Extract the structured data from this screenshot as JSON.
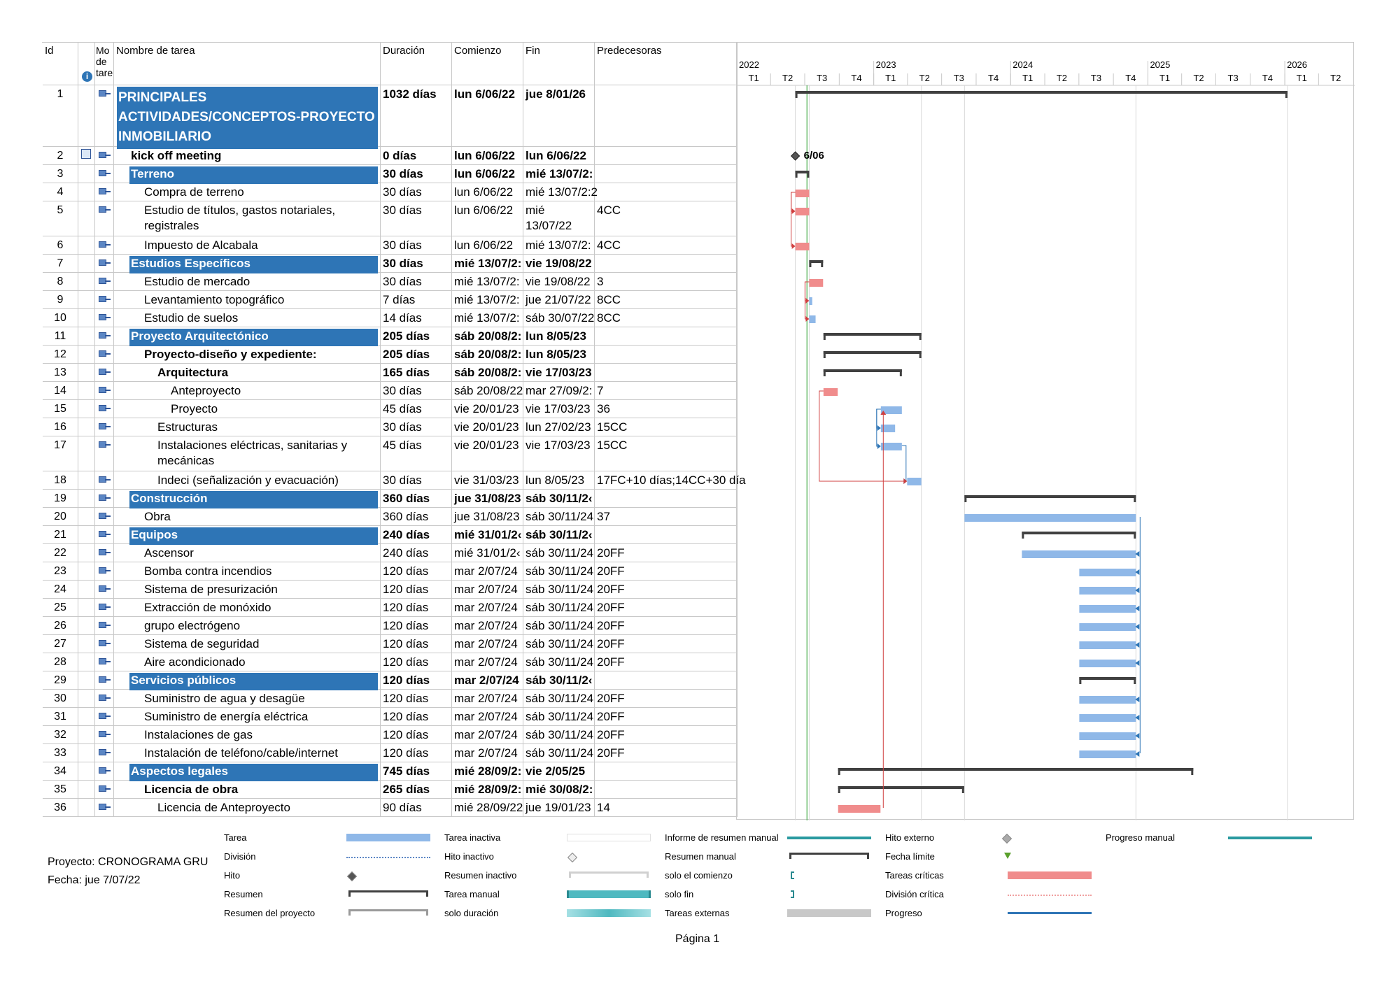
{
  "headers": {
    "id": "Id",
    "mode": "Mo de tare",
    "name": "Nombre de tarea",
    "duration": "Duración",
    "start": "Comienzo",
    "finish": "Fin",
    "pred": "Predecesoras"
  },
  "timeline": {
    "years": [
      "2022",
      "2023",
      "2024",
      "2025",
      "2026"
    ],
    "quarters": [
      "T1",
      "T2",
      "T3",
      "T4",
      "T1",
      "T2",
      "T3",
      "T4",
      "T1",
      "T2",
      "T3",
      "T4",
      "T1",
      "T2",
      "T3",
      "T4",
      "T1",
      "T2"
    ]
  },
  "milestone_label": "6/06",
  "chart_data": {
    "type": "gantt",
    "x_range": [
      "2022-01-01",
      "2026-06-30"
    ],
    "tasks": [
      {
        "id": "1",
        "name": "PRINCIPALES ACTIVIDADES/CONCEPTOS-PROYECTO INMOBILIARIO",
        "duration": "1032 días",
        "start": "lun 6/06/22",
        "finish": "jue 8/01/26",
        "pred": "",
        "level": 0,
        "kind": "project",
        "s": "2022-06-06",
        "f": "2026-01-08"
      },
      {
        "id": "2",
        "name": "kick off meeting",
        "duration": "0 días",
        "start": "lun 6/06/22",
        "finish": "lun 6/06/22",
        "pred": "",
        "level": 1,
        "kind": "milestone",
        "s": "2022-06-06",
        "f": "2022-06-06"
      },
      {
        "id": "3",
        "name": "Terreno",
        "duration": "30 días",
        "start": "lun 6/06/22",
        "finish": "mié 13/07/2:",
        "pred": "",
        "level": 1,
        "kind": "summary",
        "s": "2022-06-06",
        "f": "2022-07-13"
      },
      {
        "id": "4",
        "name": "Compra de terreno",
        "duration": "30 días",
        "start": "lun 6/06/22",
        "finish": "mié 13/07/2:2",
        "pred": "",
        "level": 2,
        "kind": "critical",
        "s": "2022-06-06",
        "f": "2022-07-13"
      },
      {
        "id": "5",
        "name": "Estudio de títulos, gastos notariales, registrales",
        "duration": "30 días",
        "start": "lun 6/06/22",
        "finish": "mié 13/07/22",
        "pred": "4CC",
        "level": 2,
        "kind": "critical",
        "s": "2022-06-06",
        "f": "2022-07-13"
      },
      {
        "id": "6",
        "name": "Impuesto de Alcabala",
        "duration": "30 días",
        "start": "lun 6/06/22",
        "finish": "mié 13/07/2:",
        "pred": "4CC",
        "level": 2,
        "kind": "critical",
        "s": "2022-06-06",
        "f": "2022-07-13"
      },
      {
        "id": "7",
        "name": "Estudios Específicos",
        "duration": "30 días",
        "start": "mié 13/07/2:",
        "finish": "vie 19/08/22",
        "pred": "",
        "level": 1,
        "kind": "summary",
        "s": "2022-07-13",
        "f": "2022-08-19"
      },
      {
        "id": "8",
        "name": "Estudio de mercado",
        "duration": "30 días",
        "start": "mié 13/07/2:",
        "finish": "vie 19/08/22",
        "pred": "3",
        "level": 2,
        "kind": "critical",
        "s": "2022-07-13",
        "f": "2022-08-19"
      },
      {
        "id": "9",
        "name": "Levantamiento topográfico",
        "duration": "7 días",
        "start": "mié 13/07/2:",
        "finish": "jue 21/07/22",
        "pred": "8CC",
        "level": 2,
        "kind": "task",
        "s": "2022-07-13",
        "f": "2022-07-21"
      },
      {
        "id": "10",
        "name": "Estudio de suelos",
        "duration": "14 días",
        "start": "mié 13/07/2:",
        "finish": "sáb 30/07/22",
        "pred": "8CC",
        "level": 2,
        "kind": "task",
        "s": "2022-07-13",
        "f": "2022-07-30"
      },
      {
        "id": "11",
        "name": "Proyecto Arquitectónico",
        "duration": "205 días",
        "start": "sáb 20/08/2:",
        "finish": "lun 8/05/23",
        "pred": "",
        "level": 1,
        "kind": "summary",
        "s": "2022-08-20",
        "f": "2023-05-08"
      },
      {
        "id": "12",
        "name": "Proyecto-diseño y expediente:",
        "duration": "205 días",
        "start": "sáb 20/08/2:",
        "finish": "lun 8/05/23",
        "pred": "",
        "level": 2,
        "kind": "summary",
        "s": "2022-08-20",
        "f": "2023-05-08"
      },
      {
        "id": "13",
        "name": "Arquitectura",
        "duration": "165 días",
        "start": "sáb 20/08/2:",
        "finish": "vie 17/03/23",
        "pred": "",
        "level": 3,
        "kind": "summary",
        "s": "2022-08-20",
        "f": "2023-03-17"
      },
      {
        "id": "14",
        "name": "Anteproyecto",
        "duration": "30 días",
        "start": "sáb 20/08/22",
        "finish": "mar 27/09/2:",
        "pred": "7",
        "level": 4,
        "kind": "critical",
        "s": "2022-08-20",
        "f": "2022-09-27"
      },
      {
        "id": "15",
        "name": "Proyecto",
        "duration": "45 días",
        "start": "vie 20/01/23",
        "finish": "vie 17/03/23",
        "pred": "36",
        "level": 4,
        "kind": "task",
        "s": "2023-01-20",
        "f": "2023-03-17"
      },
      {
        "id": "16",
        "name": "Estructuras",
        "duration": "30 días",
        "start": "vie 20/01/23",
        "finish": "lun 27/02/23",
        "pred": "15CC",
        "level": 3,
        "kind": "task",
        "s": "2023-01-20",
        "f": "2023-02-27"
      },
      {
        "id": "17",
        "name": "Instalaciones eléctricas, sanitarias y mecánicas",
        "duration": "45 días",
        "start": "vie 20/01/23",
        "finish": "vie 17/03/23",
        "pred": "15CC",
        "level": 3,
        "kind": "task",
        "s": "2023-01-20",
        "f": "2023-03-17"
      },
      {
        "id": "18",
        "name": "Indeci (señalización y evacuación)",
        "duration": "30 días",
        "start": "vie 31/03/23",
        "finish": "lun 8/05/23",
        "pred": "17FC+10 días;14CC+30 día",
        "level": 3,
        "kind": "task",
        "s": "2023-03-31",
        "f": "2023-05-08"
      },
      {
        "id": "19",
        "name": "Construcción",
        "duration": "360 días",
        "start": "jue 31/08/23",
        "finish": "sáb 30/11/2‹",
        "pred": "",
        "level": 1,
        "kind": "summary",
        "s": "2023-08-31",
        "f": "2024-11-30"
      },
      {
        "id": "20",
        "name": "Obra",
        "duration": "360 días",
        "start": "jue 31/08/23",
        "finish": "sáb 30/11/24",
        "pred": "37",
        "level": 2,
        "kind": "task",
        "s": "2023-08-31",
        "f": "2024-11-30"
      },
      {
        "id": "21",
        "name": "Equipos",
        "duration": "240 días",
        "start": "mié 31/01/2‹",
        "finish": "sáb 30/11/2‹",
        "pred": "",
        "level": 1,
        "kind": "summary",
        "s": "2024-01-31",
        "f": "2024-11-30"
      },
      {
        "id": "22",
        "name": "Ascensor",
        "duration": "240 días",
        "start": "mié 31/01/2‹",
        "finish": "sáb 30/11/24",
        "pred": "20FF",
        "level": 2,
        "kind": "task",
        "s": "2024-01-31",
        "f": "2024-11-30"
      },
      {
        "id": "23",
        "name": "Bomba contra incendios",
        "duration": "120 días",
        "start": "mar 2/07/24",
        "finish": "sáb 30/11/24",
        "pred": "20FF",
        "level": 2,
        "kind": "task",
        "s": "2024-07-02",
        "f": "2024-11-30"
      },
      {
        "id": "24",
        "name": "Sistema de presurización",
        "duration": "120 días",
        "start": "mar 2/07/24",
        "finish": "sáb 30/11/24",
        "pred": "20FF",
        "level": 2,
        "kind": "task",
        "s": "2024-07-02",
        "f": "2024-11-30"
      },
      {
        "id": "25",
        "name": "Extracción de monóxido",
        "duration": "120 días",
        "start": "mar 2/07/24",
        "finish": "sáb 30/11/24",
        "pred": "20FF",
        "level": 2,
        "kind": "task",
        "s": "2024-07-02",
        "f": "2024-11-30"
      },
      {
        "id": "26",
        "name": "grupo electrógeno",
        "duration": "120 días",
        "start": "mar 2/07/24",
        "finish": "sáb 30/11/24",
        "pred": "20FF",
        "level": 2,
        "kind": "task",
        "s": "2024-07-02",
        "f": "2024-11-30"
      },
      {
        "id": "27",
        "name": "Sistema de seguridad",
        "duration": "120 días",
        "start": "mar 2/07/24",
        "finish": "sáb 30/11/24",
        "pred": "20FF",
        "level": 2,
        "kind": "task",
        "s": "2024-07-02",
        "f": "2024-11-30"
      },
      {
        "id": "28",
        "name": "Aire acondicionado",
        "duration": "120 días",
        "start": "mar 2/07/24",
        "finish": "sáb 30/11/24",
        "pred": "20FF",
        "level": 2,
        "kind": "task",
        "s": "2024-07-02",
        "f": "2024-11-30"
      },
      {
        "id": "29",
        "name": "Servicios públicos",
        "duration": "120 días",
        "start": "mar 2/07/24",
        "finish": "sáb 30/11/2‹",
        "pred": "",
        "level": 1,
        "kind": "summary",
        "s": "2024-07-02",
        "f": "2024-11-30"
      },
      {
        "id": "30",
        "name": "Suministro de agua y desagüe",
        "duration": "120 días",
        "start": "mar 2/07/24",
        "finish": "sáb 30/11/24",
        "pred": "20FF",
        "level": 2,
        "kind": "task",
        "s": "2024-07-02",
        "f": "2024-11-30"
      },
      {
        "id": "31",
        "name": "Suministro de energía eléctrica",
        "duration": "120 días",
        "start": "mar 2/07/24",
        "finish": "sáb 30/11/24",
        "pred": "20FF",
        "level": 2,
        "kind": "task",
        "s": "2024-07-02",
        "f": "2024-11-30"
      },
      {
        "id": "32",
        "name": "Instalaciones de gas",
        "duration": "120 días",
        "start": "mar 2/07/24",
        "finish": "sáb 30/11/24",
        "pred": "20FF",
        "level": 2,
        "kind": "task",
        "s": "2024-07-02",
        "f": "2024-11-30"
      },
      {
        "id": "33",
        "name": "Instalación de teléfono/cable/internet",
        "duration": "120 días",
        "start": "mar 2/07/24",
        "finish": "sáb 30/11/24",
        "pred": "20FF",
        "level": 2,
        "kind": "task",
        "s": "2024-07-02",
        "f": "2024-11-30"
      },
      {
        "id": "34",
        "name": "Aspectos legales",
        "duration": "745 días",
        "start": "mié 28/09/2:",
        "finish": "vie 2/05/25",
        "pred": "",
        "level": 1,
        "kind": "summary",
        "s": "2022-09-28",
        "f": "2025-05-02"
      },
      {
        "id": "35",
        "name": "Licencia de obra",
        "duration": "265 días",
        "start": "mié 28/09/2:",
        "finish": "mié 30/08/2:",
        "pred": "",
        "level": 2,
        "kind": "summary",
        "s": "2022-09-28",
        "f": "2023-08-30"
      },
      {
        "id": "36",
        "name": "Licencia de Anteproyecto",
        "duration": "90 días",
        "start": "mié 28/09/22",
        "finish": "jue 19/01/23",
        "pred": "14",
        "level": 3,
        "kind": "critical",
        "s": "2022-09-28",
        "f": "2023-01-19"
      }
    ]
  },
  "legend": {
    "col1": [
      "Tarea",
      "División",
      "Hito",
      "Resumen",
      "Resumen del proyecto"
    ],
    "col2": [
      "Tarea inactiva",
      "Hito inactivo",
      "Resumen inactivo",
      "Tarea manual",
      "solo duración"
    ],
    "col3": [
      "Informe de resumen manual",
      "Resumen manual",
      "solo el comienzo",
      "solo fin",
      "Tareas externas"
    ],
    "col4": [
      "Hito externo",
      "Fecha límite",
      "Tareas críticas",
      "División crítica",
      "Progreso"
    ],
    "col5": [
      "Progreso manual"
    ]
  },
  "footer": {
    "project": "Proyecto: CRONOGRAMA GRU",
    "date": "Fecha: jue 7/07/22",
    "page": "Página 1"
  },
  "colors": {
    "summary_fill": "#2e75b6",
    "task_bar": "#8fb8e8",
    "critical_bar": "#f08c8c",
    "summary_bracket": "#404040",
    "critical_link": "#d04040",
    "link": "#2e75b6",
    "status_line": "#4caf50"
  }
}
